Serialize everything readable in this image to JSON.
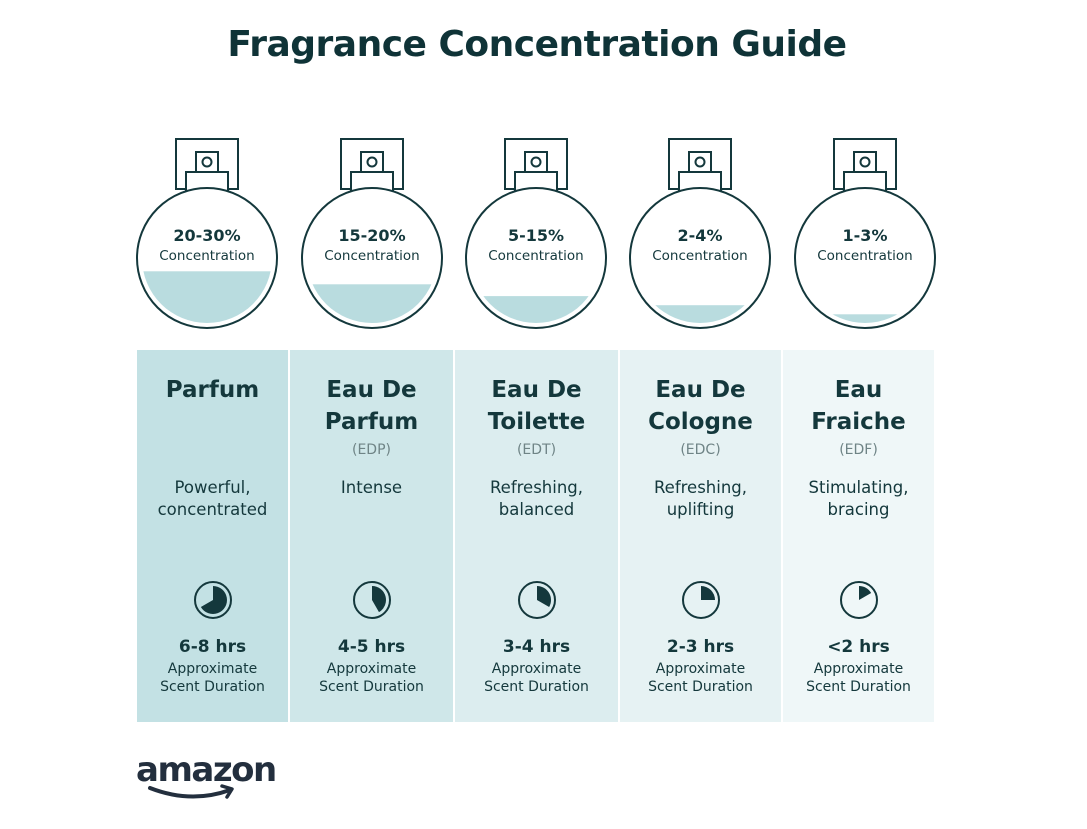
{
  "title": "Fragrance Concentration Guide",
  "colors": {
    "ink": "#14383c",
    "liquid": "#b9dcdf",
    "columns": [
      "#c3e1e4",
      "#cfe7e9",
      "#dcedef",
      "#e6f2f3",
      "#eff7f8"
    ]
  },
  "types": [
    {
      "concentration": "20-30%",
      "concentration_label": "Concentration",
      "name_lines": [
        "Parfum",
        ""
      ],
      "abbreviation": "",
      "description_lines": [
        "Powerful,",
        "concentrated"
      ],
      "hours": "6-8 hrs",
      "duration_lines": [
        "Approximate",
        "Scent Duration"
      ],
      "fill_level": 0.42,
      "clock_fraction": 0.667,
      "icon": "clock-icon"
    },
    {
      "concentration": "15-20%",
      "concentration_label": "Concentration",
      "name_lines": [
        "Eau De",
        "Parfum"
      ],
      "abbreviation": "(EDP)",
      "description_lines": [
        "Intense",
        ""
      ],
      "hours": "4-5 hrs",
      "duration_lines": [
        "Approximate",
        "Scent Duration"
      ],
      "fill_level": 0.32,
      "clock_fraction": 0.417,
      "icon": "clock-icon"
    },
    {
      "concentration": "5-15%",
      "concentration_label": "Concentration",
      "name_lines": [
        "Eau De",
        "Toilette"
      ],
      "abbreviation": "(EDT)",
      "description_lines": [
        "Refreshing,",
        "balanced"
      ],
      "hours": "3-4 hrs",
      "duration_lines": [
        "Approximate",
        "Scent Duration"
      ],
      "fill_level": 0.23,
      "clock_fraction": 0.333,
      "icon": "clock-icon"
    },
    {
      "concentration": "2-4%",
      "concentration_label": "Concentration",
      "name_lines": [
        "Eau De",
        "Cologne"
      ],
      "abbreviation": "(EDC)",
      "description_lines": [
        "Refreshing,",
        "uplifting"
      ],
      "hours": "2-3 hrs",
      "duration_lines": [
        "Approximate",
        "Scent Duration"
      ],
      "fill_level": 0.16,
      "clock_fraction": 0.25,
      "icon": "clock-icon"
    },
    {
      "concentration": "1-3%",
      "concentration_label": "Concentration",
      "name_lines": [
        "Eau",
        "Fraiche"
      ],
      "abbreviation": "(EDF)",
      "description_lines": [
        "Stimulating,",
        "bracing"
      ],
      "hours": "<2 hrs",
      "duration_lines": [
        "Approximate",
        "Scent Duration"
      ],
      "fill_level": 0.09,
      "clock_fraction": 0.167,
      "icon": "clock-icon"
    }
  ],
  "logo": {
    "text": "amazon"
  }
}
